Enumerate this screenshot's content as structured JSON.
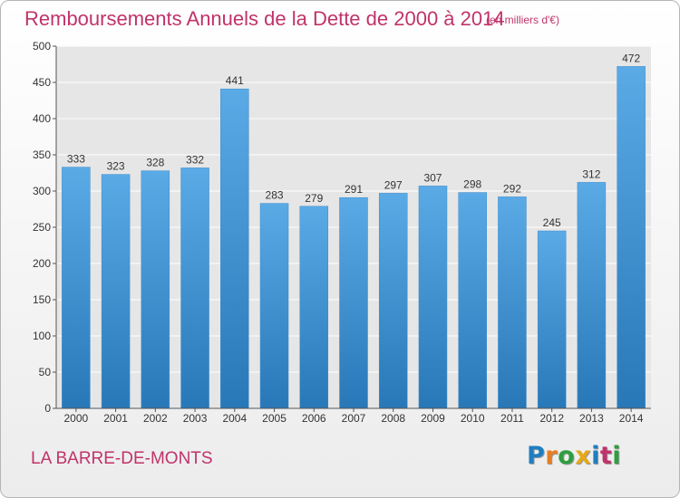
{
  "chart_data": {
    "type": "bar",
    "title": "Remboursements Annuels de la Dette de 2000 à 2014",
    "subtitle": "(en milliers d'€)",
    "categories": [
      "2000",
      "2001",
      "2002",
      "2003",
      "2004",
      "2005",
      "2006",
      "2007",
      "2008",
      "2009",
      "2010",
      "2011",
      "2012",
      "2013",
      "2014"
    ],
    "values": [
      333,
      323,
      328,
      332,
      441,
      283,
      279,
      291,
      297,
      307,
      298,
      292,
      245,
      312,
      472
    ],
    "ylim": [
      0,
      500
    ],
    "yticks": [
      0,
      50,
      100,
      150,
      200,
      250,
      300,
      350,
      400,
      450,
      500
    ],
    "grid": true,
    "colors": {
      "bar_top": "#5aaae6",
      "bar_bottom": "#2878b8",
      "plot_bg": "#e6e6e6",
      "grid": "#ffffff"
    }
  },
  "footer": {
    "location": "LA BARRE-DE-MONTS",
    "brand_letters": [
      "P",
      "r",
      "o",
      "x",
      "i",
      "t",
      "i"
    ],
    "brand_colors": [
      "#1f7ec2",
      "#e67e22",
      "#2e9e3e",
      "#e6a817",
      "#1f7ec2",
      "#c0336a",
      "#2e9e3e"
    ]
  }
}
